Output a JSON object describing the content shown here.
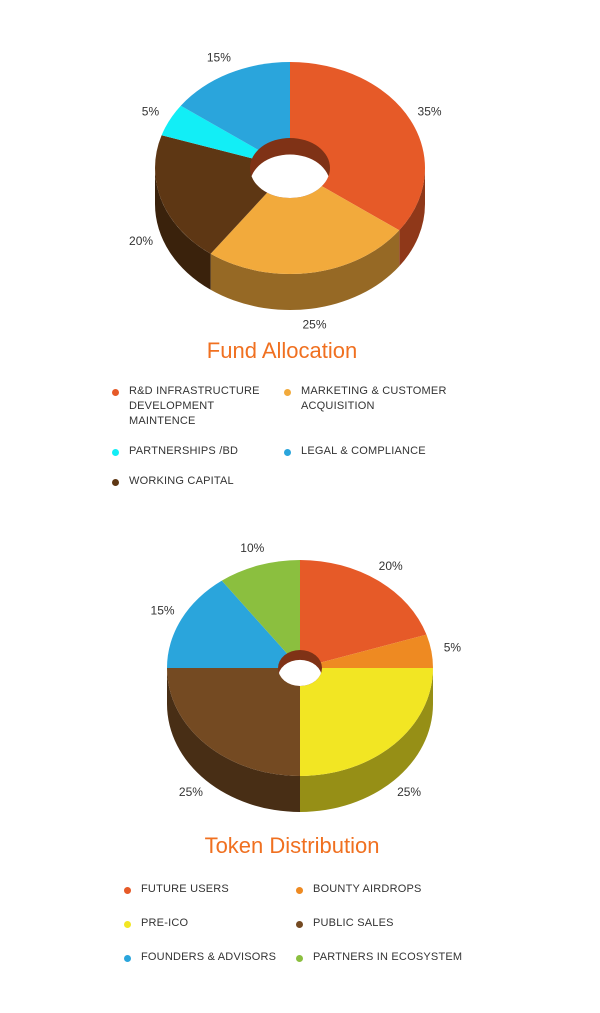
{
  "chart_data": [
    {
      "type": "pie",
      "title": "Fund Allocation",
      "categories": [
        "R&D INFRASTRUCTURE DEVELOPMENT MAINTENCE",
        "MARKETING & CUSTOMER ACQUISITION",
        "WORKING CAPITAL",
        "PARTNERSHIPS /BD",
        "LEGAL & COMPLIANCE"
      ],
      "values": [
        35,
        25,
        20,
        5,
        15
      ],
      "value_labels": [
        "35%",
        "25%",
        "20%",
        "5%",
        "15%"
      ],
      "colors": [
        "#e65a28",
        "#f2aa3c",
        "#5e3714",
        "#12eef6",
        "#2aa5dc"
      ]
    },
    {
      "type": "pie",
      "title": "Token Distribution",
      "categories": [
        "FUTURE USERS",
        "BOUNTY AIRDROPS",
        "PRE-ICO",
        "PUBLIC SALES",
        "FOUNDERS & ADVISORS",
        "PARTNERS IN ECOSYSTEM"
      ],
      "values": [
        20,
        5,
        25,
        25,
        15,
        10
      ],
      "value_labels": [
        "20%",
        "5%",
        "25%",
        "25%",
        "15%",
        "10%"
      ],
      "colors": [
        "#e65a28",
        "#ee8a22",
        "#f2e623",
        "#744a22",
        "#2aa5dc",
        "#8bbf3f"
      ]
    }
  ]
}
